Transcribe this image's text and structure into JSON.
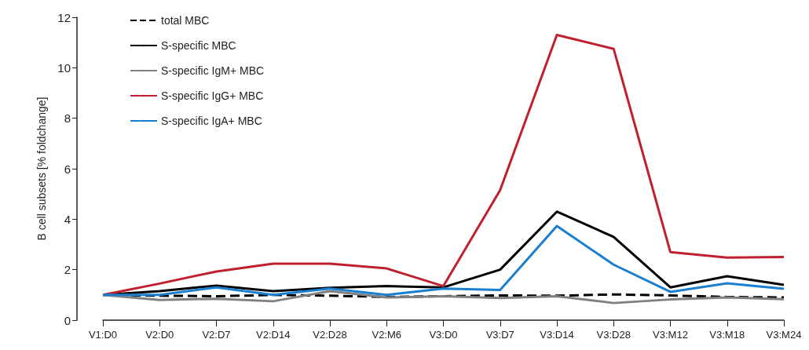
{
  "chart_data": {
    "type": "line",
    "ylabel": "B cell subsets [% foldchange]",
    "categories": [
      "V1:D0",
      "V2:D0",
      "V2:D7",
      "V2:D14",
      "V2:D28",
      "V2:M6",
      "V3:D0",
      "V3:D7",
      "V3:D14",
      "V3:D28",
      "V3:M12",
      "V3:M18",
      "V3:M24"
    ],
    "ylim": [
      0,
      12
    ],
    "yticks": [
      0,
      2,
      4,
      6,
      8,
      10,
      12
    ],
    "grid": false,
    "legend": "top left",
    "marker": "none",
    "line_style": "solid",
    "series": [
      {
        "name": "total MBC",
        "color": "#000000",
        "line_style": "dashed",
        "values": [
          1.0,
          0.97,
          0.95,
          1.0,
          0.97,
          0.92,
          0.95,
          0.98,
          0.97,
          1.02,
          0.98,
          0.92,
          0.9
        ]
      },
      {
        "name": "S-specific MBC",
        "color": "#000000",
        "values": [
          1.0,
          1.15,
          1.37,
          1.15,
          1.28,
          1.35,
          1.3,
          2.0,
          4.3,
          3.3,
          1.3,
          1.74,
          1.4
        ]
      },
      {
        "name": "S-specific IgM+ MBC",
        "color": "#808080",
        "values": [
          1.0,
          0.8,
          0.85,
          0.75,
          1.15,
          0.9,
          0.95,
          0.88,
          0.95,
          0.68,
          0.82,
          0.9,
          0.83
        ]
      },
      {
        "name": "S-specific IgG+ MBC",
        "color": "#c0202e",
        "values": [
          1.0,
          1.45,
          1.93,
          2.24,
          2.24,
          2.05,
          1.35,
          5.15,
          11.3,
          10.75,
          2.7,
          2.48,
          2.5
        ]
      },
      {
        "name": "S-specific IgA+ MBC",
        "color": "#1a7fcf",
        "values": [
          1.0,
          1.0,
          1.3,
          1.0,
          1.25,
          1.0,
          1.25,
          1.2,
          3.73,
          2.2,
          1.12,
          1.46,
          1.24
        ]
      }
    ]
  }
}
